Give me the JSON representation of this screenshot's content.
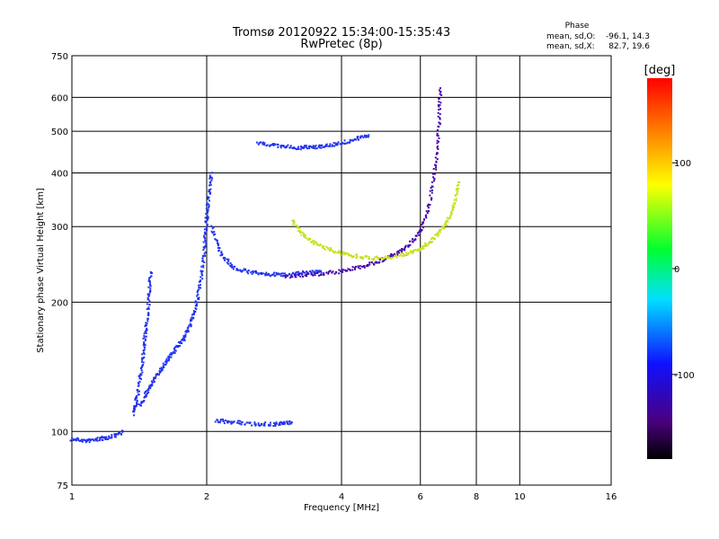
{
  "chart_data": {
    "type": "scatter",
    "title": "Tromsø 20120922 15:34:00-15:35:43",
    "subtitle": "RwPretec (8p)",
    "xlabel": "Frequency [MHz]",
    "ylabel": "Stationary phase Virtual Height [km]",
    "x_scale": "log",
    "y_scale": "log",
    "xlim": [
      1,
      16
    ],
    "ylim": [
      75,
      750
    ],
    "x_ticks": [
      1,
      2,
      4,
      6,
      8,
      10,
      16
    ],
    "y_ticks": [
      75,
      100,
      200,
      300,
      400,
      500,
      600,
      750
    ],
    "grid": true,
    "stats": {
      "heading": "Phase",
      "o_label": "mean, sd,O:",
      "o_values": "-96.1, 14.3",
      "x_label": "mean, sd,X:",
      "x_values": "82.7, 19.6"
    },
    "colorbar": {
      "label": "[deg]",
      "range": [
        -180,
        180
      ],
      "ticks": [
        100,
        0,
        -100
      ],
      "colormap": "rainbow"
    },
    "series": [
      {
        "mode": "O",
        "phase_deg": -110,
        "color": "#2233ee",
        "traces": [
          {
            "x": [
              1.0,
              1.08,
              1.15,
              1.22,
              1.3
            ],
            "y": [
              96,
              95,
              96,
              97,
              100
            ]
          },
          {
            "x": [
              1.37,
              1.4,
              1.43,
              1.45,
              1.47,
              1.49,
              1.5
            ],
            "y": [
              110,
              120,
              140,
              160,
              180,
              210,
              235
            ]
          },
          {
            "x": [
              1.42,
              1.48,
              1.55,
              1.62,
              1.7,
              1.78,
              1.85,
              1.9,
              1.95,
              1.98,
              2.0,
              2.02,
              2.05
            ],
            "y": [
              115,
              125,
              135,
              145,
              155,
              165,
              180,
              200,
              230,
              270,
              310,
              350,
              400
            ]
          },
          {
            "x": [
              2.05,
              2.15,
              2.3,
              2.5,
              2.75,
              3.0,
              3.3,
              3.6
            ],
            "y": [
              300,
              260,
              240,
              235,
              232,
              232,
              234,
              236
            ]
          },
          {
            "x": [
              2.1,
              2.3,
              2.6,
              2.9,
              3.1
            ],
            "y": [
              106,
              105,
              104,
              104,
              105
            ]
          },
          {
            "x": [
              2.6,
              2.9,
              3.2,
              3.5,
              3.8,
              4.2,
              4.6
            ],
            "y": [
              470,
              462,
              458,
              460,
              465,
              475,
              490
            ]
          }
        ]
      },
      {
        "mode": "O",
        "phase_deg": -135,
        "color": "#4400aa",
        "traces": [
          {
            "x": [
              3.0,
              3.5,
              4.0,
              4.5,
              5.0,
              5.5,
              6.0,
              6.3,
              6.5,
              6.6,
              6.65
            ],
            "y": [
              230,
              232,
              236,
              243,
              252,
              265,
              290,
              340,
              420,
              520,
              630
            ]
          }
        ]
      },
      {
        "mode": "X",
        "phase_deg": 80,
        "color": "#c8e020",
        "traces": [
          {
            "x": [
              3.1,
              3.3,
              3.6,
              4.0,
              4.4,
              4.9,
              5.5,
              6.0,
              6.4,
              6.8,
              7.1,
              7.3
            ],
            "y": [
              310,
              285,
              270,
              260,
              255,
              253,
              258,
              265,
              280,
              300,
              330,
              380
            ]
          }
        ]
      }
    ]
  }
}
